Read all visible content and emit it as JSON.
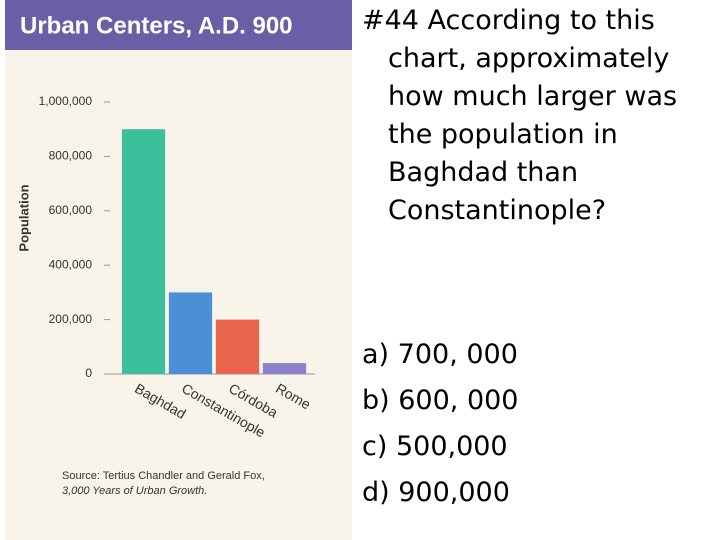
{
  "chart_data": {
    "type": "bar",
    "title": "Urban Centers, A.D. 900",
    "y_label": "Population",
    "categories": [
      "Baghdad",
      "Constantinople",
      "Córdoba",
      "Rome"
    ],
    "values": [
      900000,
      300000,
      200000,
      40000
    ],
    "colors": [
      "#3dbf9c",
      "#4b8fd6",
      "#e8654c",
      "#8c82cc"
    ],
    "ylim": [
      0,
      1000000
    ],
    "yticks": [
      0,
      {
        "value": 200000,
        "label": "200,000"
      },
      {
        "value": 400000,
        "label": "400,000"
      },
      {
        "value": 600000,
        "label": "600,000"
      },
      {
        "value": 800000,
        "label": "800,000"
      },
      {
        "value": 1000000,
        "label": "1,000,000"
      }
    ],
    "source": [
      "Source: Tertius Chandler and Gerald Fox,",
      "3,000 Years of Urban Growth."
    ]
  },
  "question": "#44 According to this chart, approximately how much larger was the population in Baghdad than Constantinople?",
  "options": [
    "a) 700, 000",
    "b) 600, 000",
    "c) 500,000",
    "d) 900,000"
  ]
}
